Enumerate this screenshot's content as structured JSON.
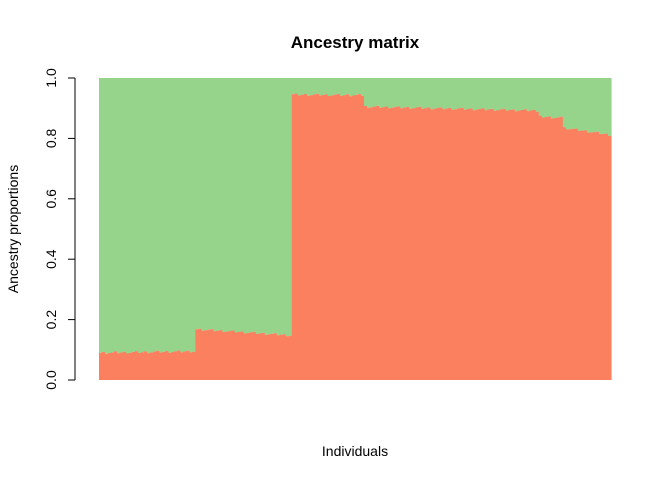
{
  "chart_data": {
    "type": "bar",
    "stacked": true,
    "title": "Ancestry matrix",
    "xlabel": "Individuals",
    "ylabel": "Ancestry proportions",
    "ylim": [
      0,
      1
    ],
    "yticks": [
      "0.0",
      "0.2",
      "0.4",
      "0.6",
      "0.8",
      "1.0"
    ],
    "xticks_shown": false,
    "legend": "none",
    "colors": {
      "component_1": "#fa8060",
      "component_2": "#96d48b"
    },
    "n_individuals": 170,
    "groups": [
      {
        "n": 32,
        "component_1_start": 0.09,
        "component_1_end": 0.095
      },
      {
        "n": 32,
        "component_1_start": 0.168,
        "component_1_end": 0.148
      },
      {
        "n": 24,
        "component_1_start": 0.945,
        "component_1_end": 0.943
      },
      {
        "n": 58,
        "component_1_start": 0.905,
        "component_1_end": 0.892
      },
      {
        "n": 8,
        "component_1_start": 0.872,
        "component_1_end": 0.868
      },
      {
        "n": 16,
        "component_1_start": 0.835,
        "component_1_end": 0.812
      }
    ]
  }
}
